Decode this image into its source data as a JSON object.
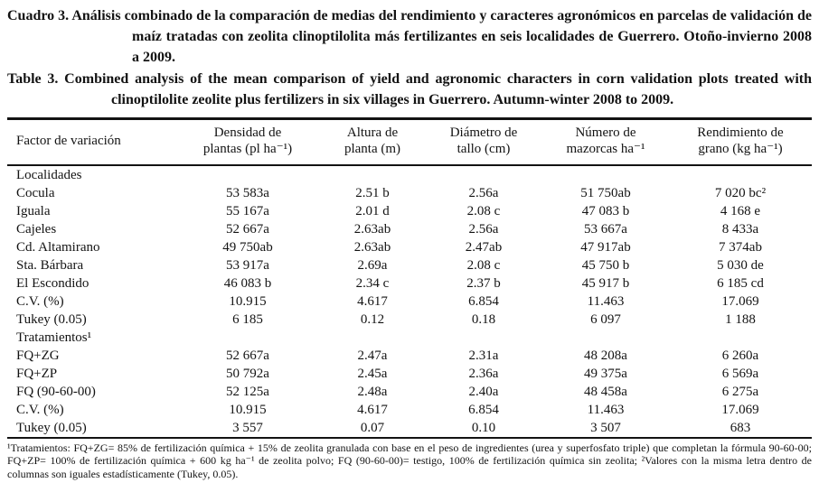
{
  "document": {
    "caption_es": "Cuadro 3. Análisis combinado de la comparación de medias del rendimiento y caracteres agronómicos en parcelas de validación de maíz tratadas con zeolita clinoptilolita más fertilizantes en seis localidades de Guerrero. Otoño-invierno 2008 a 2009.",
    "caption_en": "Table 3. Combined analysis of the mean comparison of yield and agronomic characters in corn validation plots treated with clinoptilolite zeolite plus fertilizers in six villages in Guerrero. Autumn-winter 2008 to 2009.",
    "footnote": "¹Tratamientos: FQ+ZG= 85% de fertilización química + 15% de zeolita granulada con base en el peso de ingredientes (urea y superfosfato triple) que completan la fórmula 90-60-00; FQ+ZP= 100% de fertilización química + 600 kg ha⁻¹ de zeolita polvo; FQ (90-60-00)= testigo, 100% de fertilización química sin zeolita; ²Valores con la misma letra dentro de columnas son iguales estadísticamente (Tukey, 0.05)."
  },
  "table": {
    "columns": [
      {
        "label": "Factor de variación"
      },
      {
        "label": "Densidad de\nplantas (pl ha⁻¹)"
      },
      {
        "label": "Altura de\nplanta (m)"
      },
      {
        "label": "Diámetro de\ntallo (cm)"
      },
      {
        "label": "Número de\nmazorcas ha⁻¹"
      },
      {
        "label": "Rendimiento de\ngrano (kg ha⁻¹)"
      }
    ],
    "rows": [
      {
        "type": "section",
        "label": "Localidades",
        "values": [
          "",
          "",
          "",
          "",
          ""
        ]
      },
      {
        "type": "data",
        "label": "Cocula",
        "values": [
          "53 583a",
          "2.51 b",
          "2.56a",
          "51 750ab",
          "7 020 bc²"
        ]
      },
      {
        "type": "data",
        "label": "Iguala",
        "values": [
          "55 167a",
          "2.01 d",
          "2.08 c",
          "47 083 b",
          "4 168 e"
        ]
      },
      {
        "type": "data",
        "label": "Cajeles",
        "values": [
          "52 667a",
          "2.63ab",
          "2.56a",
          "53 667a",
          "8 433a"
        ]
      },
      {
        "type": "data",
        "label": "Cd. Altamirano",
        "values": [
          "49 750ab",
          "2.63ab",
          "2.47ab",
          "47 917ab",
          "7 374ab"
        ]
      },
      {
        "type": "data",
        "label": "Sta. Bárbara",
        "values": [
          "53 917a",
          "2.69a",
          "2.08 c",
          "45 750 b",
          "5 030 de"
        ]
      },
      {
        "type": "data",
        "label": "El Escondido",
        "values": [
          "46 083 b",
          "2.34 c",
          "2.37 b",
          "45 917 b",
          "6 185 cd"
        ]
      },
      {
        "type": "data",
        "label": "C.V. (%)",
        "values": [
          "10.915",
          "4.617",
          "6.854",
          "11.463",
          "17.069"
        ]
      },
      {
        "type": "data",
        "label": "Tukey (0.05)",
        "values": [
          "6 185",
          "0.12",
          "0.18",
          "6 097",
          "1 188"
        ]
      },
      {
        "type": "section",
        "label": "Tratamientos¹",
        "values": [
          "",
          "",
          "",
          "",
          ""
        ]
      },
      {
        "type": "data",
        "label": "FQ+ZG",
        "values": [
          "52 667a",
          "2.47a",
          "2.31a",
          "48 208a",
          "6 260a"
        ]
      },
      {
        "type": "data",
        "label": "FQ+ZP",
        "values": [
          "50 792a",
          "2.45a",
          "2.36a",
          "49 375a",
          "6 569a"
        ]
      },
      {
        "type": "data",
        "label": "FQ (90-60-00)",
        "values": [
          "52 125a",
          "2.48a",
          "2.40a",
          "48 458a",
          "6 275a"
        ]
      },
      {
        "type": "data",
        "label": "C.V. (%)",
        "values": [
          "10.915",
          "4.617",
          "6.854",
          "11.463",
          "17.069"
        ]
      },
      {
        "type": "data",
        "label": "Tukey (0.05)",
        "values": [
          "3 557",
          "0.07",
          "0.10",
          "3 507",
          "683"
        ]
      }
    ]
  }
}
